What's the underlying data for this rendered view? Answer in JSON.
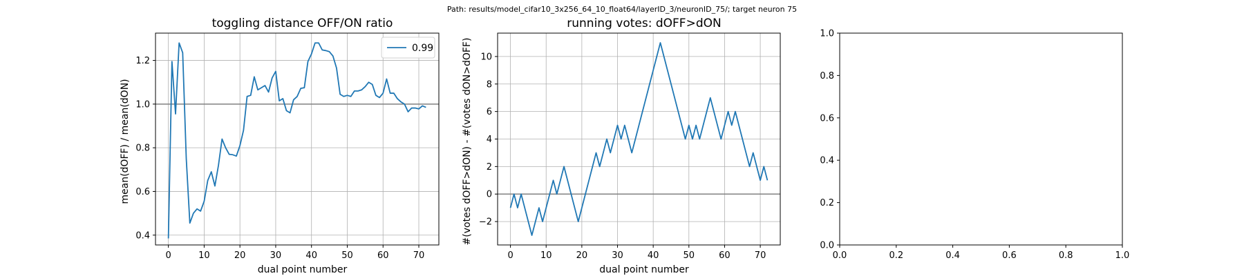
{
  "suptitle": "Path: results/model_cifar10_3x256_64_10_float64/layerID_3/neuronID_75/; target neuron 75",
  "chart_data": [
    {
      "type": "line",
      "title": "toggling distance OFF/ON ratio",
      "xlabel": "dual point number",
      "ylabel": "mean(dOFF) / mean(dON)",
      "xlim": [
        -3.6,
        75.6
      ],
      "ylim": [
        0.355,
        1.325
      ],
      "xticks": [
        0,
        10,
        20,
        30,
        40,
        50,
        60,
        70
      ],
      "yticks": [
        0.4,
        0.6,
        0.8,
        1.0,
        1.2
      ],
      "ytick_labels": [
        "0.4",
        "0.6",
        "0.8",
        "1.0",
        "1.2"
      ],
      "grid": true,
      "hline": 1.0,
      "legend": {
        "placement": "top-right",
        "entries": [
          "0.99"
        ]
      },
      "series": [
        {
          "name": "0.99",
          "color": "#1f77b4",
          "x": [
            0,
            1,
            2,
            3,
            4,
            5,
            6,
            7,
            8,
            9,
            10,
            11,
            12,
            13,
            14,
            15,
            16,
            17,
            18,
            19,
            20,
            21,
            22,
            23,
            24,
            25,
            26,
            27,
            28,
            29,
            30,
            31,
            32,
            33,
            34,
            35,
            36,
            37,
            38,
            39,
            40,
            41,
            42,
            43,
            44,
            45,
            46,
            47,
            48,
            49,
            50,
            51,
            52,
            53,
            54,
            55,
            56,
            57,
            58,
            59,
            60,
            61,
            62,
            63,
            64,
            65,
            66,
            67,
            68,
            69,
            70,
            71,
            72
          ],
          "y": [
            0.385,
            1.195,
            0.955,
            1.28,
            1.235,
            0.75,
            0.455,
            0.5,
            0.52,
            0.51,
            0.555,
            0.65,
            0.69,
            0.625,
            0.72,
            0.84,
            0.8,
            0.77,
            0.768,
            0.762,
            0.81,
            0.88,
            1.035,
            1.04,
            1.125,
            1.065,
            1.075,
            1.085,
            1.055,
            1.12,
            1.15,
            1.015,
            1.025,
            0.97,
            0.96,
            1.02,
            1.035,
            1.072,
            1.075,
            1.195,
            1.23,
            1.28,
            1.28,
            1.248,
            1.245,
            1.24,
            1.22,
            1.165,
            1.045,
            1.035,
            1.04,
            1.035,
            1.06,
            1.06,
            1.065,
            1.08,
            1.1,
            1.09,
            1.04,
            1.03,
            1.05,
            1.115,
            1.05,
            1.05,
            1.025,
            1.01,
            1.0,
            0.965,
            0.982,
            0.982,
            0.978,
            0.992,
            0.985
          ]
        }
      ]
    },
    {
      "type": "line",
      "title": "running votes: dOFF>dON",
      "xlabel": "dual point number",
      "ylabel": "#(votes dOFF>dON) - #(votes dON>dOFF)",
      "xlim": [
        -3.6,
        75.6
      ],
      "ylim": [
        -3.7,
        11.7
      ],
      "xticks": [
        0,
        10,
        20,
        30,
        40,
        50,
        60,
        70
      ],
      "yticks": [
        -2,
        0,
        2,
        4,
        6,
        8,
        10
      ],
      "ytick_labels": [
        "−2",
        "0",
        "2",
        "4",
        "6",
        "8",
        "10"
      ],
      "grid": true,
      "hline": 0,
      "series": [
        {
          "color": "#1f77b4",
          "x": [
            0,
            1,
            2,
            3,
            4,
            5,
            6,
            7,
            8,
            9,
            10,
            11,
            12,
            13,
            14,
            15,
            16,
            17,
            18,
            19,
            20,
            21,
            22,
            23,
            24,
            25,
            26,
            27,
            28,
            29,
            30,
            31,
            32,
            33,
            34,
            35,
            36,
            37,
            38,
            39,
            40,
            41,
            42,
            43,
            44,
            45,
            46,
            47,
            48,
            49,
            50,
            51,
            52,
            53,
            54,
            55,
            56,
            57,
            58,
            59,
            60,
            61,
            62,
            63,
            64,
            65,
            66,
            67,
            68,
            69,
            70,
            71,
            72
          ],
          "y": [
            -1,
            0,
            -1,
            0,
            -1,
            -2,
            -3,
            -2,
            -1,
            -2,
            -1,
            0,
            1,
            0,
            1,
            2,
            1,
            0,
            -1,
            -2,
            -1,
            0,
            1,
            2,
            3,
            2,
            3,
            4,
            3,
            4,
            5,
            4,
            5,
            4,
            3,
            4,
            5,
            6,
            7,
            8,
            9,
            10,
            11,
            10,
            9,
            8,
            7,
            6,
            5,
            4,
            5,
            4,
            5,
            4,
            5,
            6,
            7,
            6,
            5,
            4,
            5,
            6,
            5,
            6,
            5,
            4,
            3,
            2,
            3,
            2,
            1,
            2,
            1
          ]
        }
      ]
    },
    {
      "type": "line",
      "title": "",
      "xlabel": "",
      "ylabel": "",
      "xlim": [
        0,
        1
      ],
      "ylim": [
        0,
        1
      ],
      "xticks": [
        0.0,
        0.2,
        0.4,
        0.6,
        0.8,
        1.0
      ],
      "yticks": [
        0.0,
        0.2,
        0.4,
        0.6,
        0.8,
        1.0
      ],
      "xtick_labels": [
        "0.0",
        "0.2",
        "0.4",
        "0.6",
        "0.8",
        "1.0"
      ],
      "ytick_labels": [
        "0.0",
        "0.2",
        "0.4",
        "0.6",
        "0.8",
        "1.0"
      ],
      "grid": false,
      "series": []
    }
  ]
}
